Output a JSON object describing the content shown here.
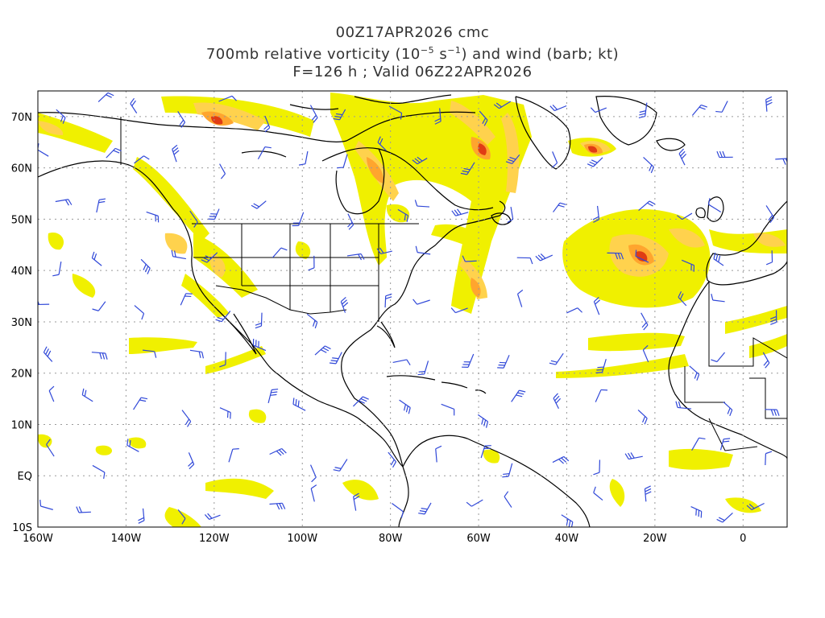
{
  "title": {
    "line1": "00Z17APR2026 cmc",
    "line2_prefix": "700mb relative vorticity (10",
    "line2_exp1": "−5",
    "line2_mid": " s",
    "line2_exp2": "−1",
    "line2_suffix": ") and wind (barb; kt)",
    "line3": "F=126 h ; Valid 06Z22APR2026"
  },
  "map": {
    "lon_range": [
      -160,
      10
    ],
    "lat_range": [
      -10,
      75
    ],
    "lon_ticks": [
      {
        "lon": -160,
        "label": "160W"
      },
      {
        "lon": -140,
        "label": "140W"
      },
      {
        "lon": -120,
        "label": "120W"
      },
      {
        "lon": -100,
        "label": "100W"
      },
      {
        "lon": -80,
        "label": "80W"
      },
      {
        "lon": -60,
        "label": "60W"
      },
      {
        "lon": -40,
        "label": "40W"
      },
      {
        "lon": -20,
        "label": "20W"
      },
      {
        "lon": 0,
        "label": "0"
      }
    ],
    "lat_ticks": [
      {
        "lat": 70,
        "label": "70N"
      },
      {
        "lat": 60,
        "label": "60N"
      },
      {
        "lat": 50,
        "label": "50N"
      },
      {
        "lat": 40,
        "label": "40N"
      },
      {
        "lat": 30,
        "label": "30N"
      },
      {
        "lat": 20,
        "label": "20N"
      },
      {
        "lat": 10,
        "label": "10N"
      },
      {
        "lat": 0,
        "label": "EQ"
      },
      {
        "lat": -10,
        "label": "10S"
      }
    ],
    "colors": {
      "level1": "#f0f000",
      "level2": "#ffd24d",
      "level3": "#ffa52e",
      "level4": "#f06e1a",
      "level5": "#e03c14",
      "barb": "#3048d8",
      "coast": "#000000",
      "grid": "#9a9a9a"
    }
  }
}
